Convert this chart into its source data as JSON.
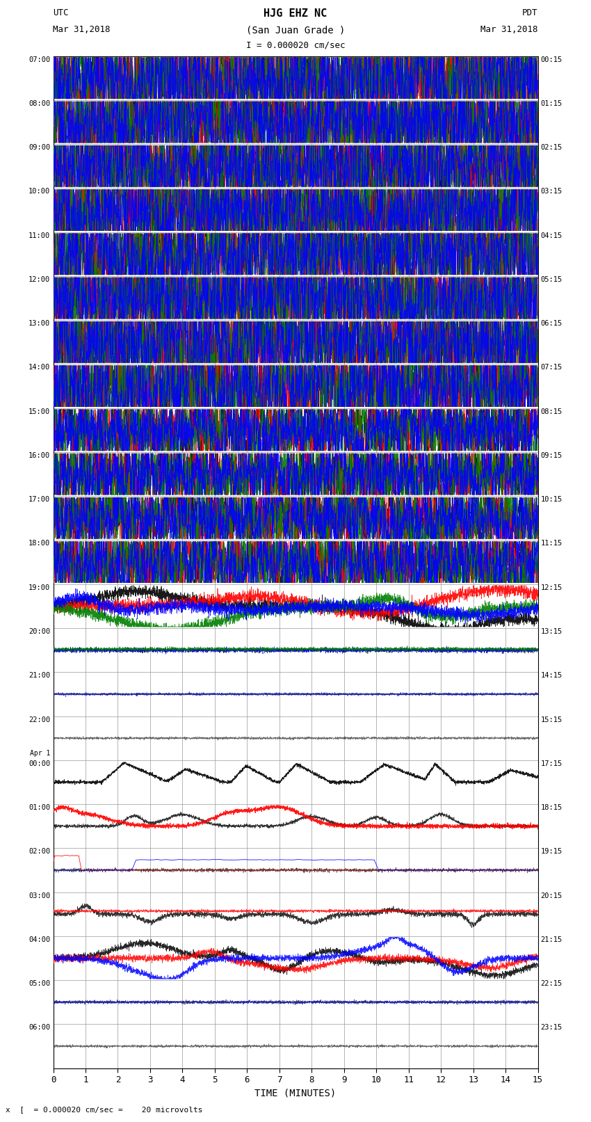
{
  "title_line1": "HJG EHZ NC",
  "title_line2": "(San Juan Grade )",
  "title_line3": "I = 0.000020 cm/sec",
  "left_label_top": "UTC",
  "left_label_date": "Mar 31,2018",
  "right_label_top": "PDT",
  "right_label_date": "Mar 31,2018",
  "xlabel": "TIME (MINUTES)",
  "footnote": "x  [  = 0.000020 cm/sec =    20 microvolts",
  "utc_times": [
    "07:00",
    "08:00",
    "09:00",
    "10:00",
    "11:00",
    "12:00",
    "13:00",
    "14:00",
    "15:00",
    "16:00",
    "17:00",
    "18:00",
    "19:00",
    "20:00",
    "21:00",
    "22:00",
    "Apr 1\n00:00",
    "01:00",
    "02:00",
    "03:00",
    "04:00",
    "05:00",
    "06:00"
  ],
  "pdt_times": [
    "00:15",
    "01:15",
    "02:15",
    "03:15",
    "04:15",
    "05:15",
    "06:15",
    "07:15",
    "08:15",
    "09:15",
    "10:15",
    "11:15",
    "12:15",
    "13:15",
    "14:15",
    "15:15",
    "17:15",
    "18:15",
    "19:15",
    "20:15",
    "21:15",
    "22:15",
    "23:15"
  ],
  "n_rows": 23,
  "x_min": 0,
  "x_max": 15,
  "x_ticks": [
    0,
    1,
    2,
    3,
    4,
    5,
    6,
    7,
    8,
    9,
    10,
    11,
    12,
    13,
    14,
    15
  ],
  "bg_color": "#ffffff",
  "grid_color": "#999999",
  "waveform_seed": 12345
}
